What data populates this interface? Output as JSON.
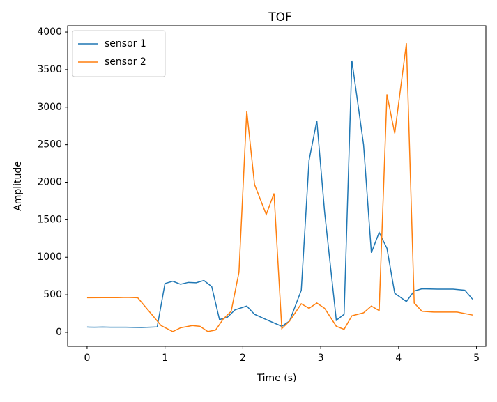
{
  "chart_data": {
    "type": "line",
    "title": "TOF",
    "x_label": "Time (s)",
    "y_label": "Amplitude",
    "series": [
      {
        "name": "sensor 1",
        "color": "#1f77b4",
        "x": [
          0,
          0.1,
          0.2,
          0.3,
          0.4,
          0.5,
          0.6,
          0.7,
          0.8,
          0.9,
          1.0,
          1.1,
          1.2,
          1.3,
          1.4,
          1.5,
          1.6,
          1.7,
          1.8,
          1.9,
          2.05,
          2.15,
          2.3,
          2.5,
          2.6,
          2.75,
          2.85,
          2.95,
          3.05,
          3.2,
          3.3,
          3.4,
          3.55,
          3.65,
          3.75,
          3.85,
          3.95,
          4.1,
          4.2,
          4.3,
          4.5,
          4.7,
          4.85,
          4.95
        ],
        "values": [
          70,
          68,
          70,
          68,
          68,
          68,
          66,
          65,
          68,
          72,
          650,
          680,
          640,
          665,
          660,
          690,
          610,
          170,
          200,
          300,
          350,
          240,
          170,
          80,
          150,
          560,
          2290,
          2820,
          1600,
          160,
          240,
          3620,
          2500,
          1060,
          1330,
          1120,
          520,
          410,
          550,
          580,
          575,
          575,
          560,
          440
        ]
      },
      {
        "name": "sensor 2",
        "color": "#ff7f0e",
        "x": [
          0,
          0.2,
          0.4,
          0.5,
          0.65,
          0.95,
          1.1,
          1.2,
          1.35,
          1.45,
          1.55,
          1.65,
          1.75,
          1.85,
          1.95,
          2.05,
          2.15,
          2.3,
          2.4,
          2.5,
          2.6,
          2.75,
          2.85,
          2.95,
          3.05,
          3.2,
          3.3,
          3.4,
          3.55,
          3.65,
          3.75,
          3.85,
          3.95,
          4.1,
          4.2,
          4.3,
          4.45,
          4.6,
          4.75,
          4.95
        ],
        "values": [
          460,
          462,
          462,
          465,
          460,
          90,
          10,
          60,
          90,
          80,
          10,
          30,
          180,
          280,
          800,
          2950,
          1970,
          1570,
          1850,
          50,
          150,
          380,
          320,
          390,
          320,
          80,
          40,
          220,
          260,
          350,
          290,
          3170,
          2650,
          3850,
          390,
          280,
          270,
          270,
          270,
          230
        ]
      }
    ],
    "xlim": [
      -0.25,
      5.12
    ],
    "ylim": [
      -186,
      4084
    ],
    "xticks": [
      0,
      1,
      2,
      3,
      4,
      5
    ],
    "yticks": [
      0,
      500,
      1000,
      1500,
      2000,
      2500,
      3000,
      3500,
      4000
    ],
    "legend": "upper left"
  }
}
